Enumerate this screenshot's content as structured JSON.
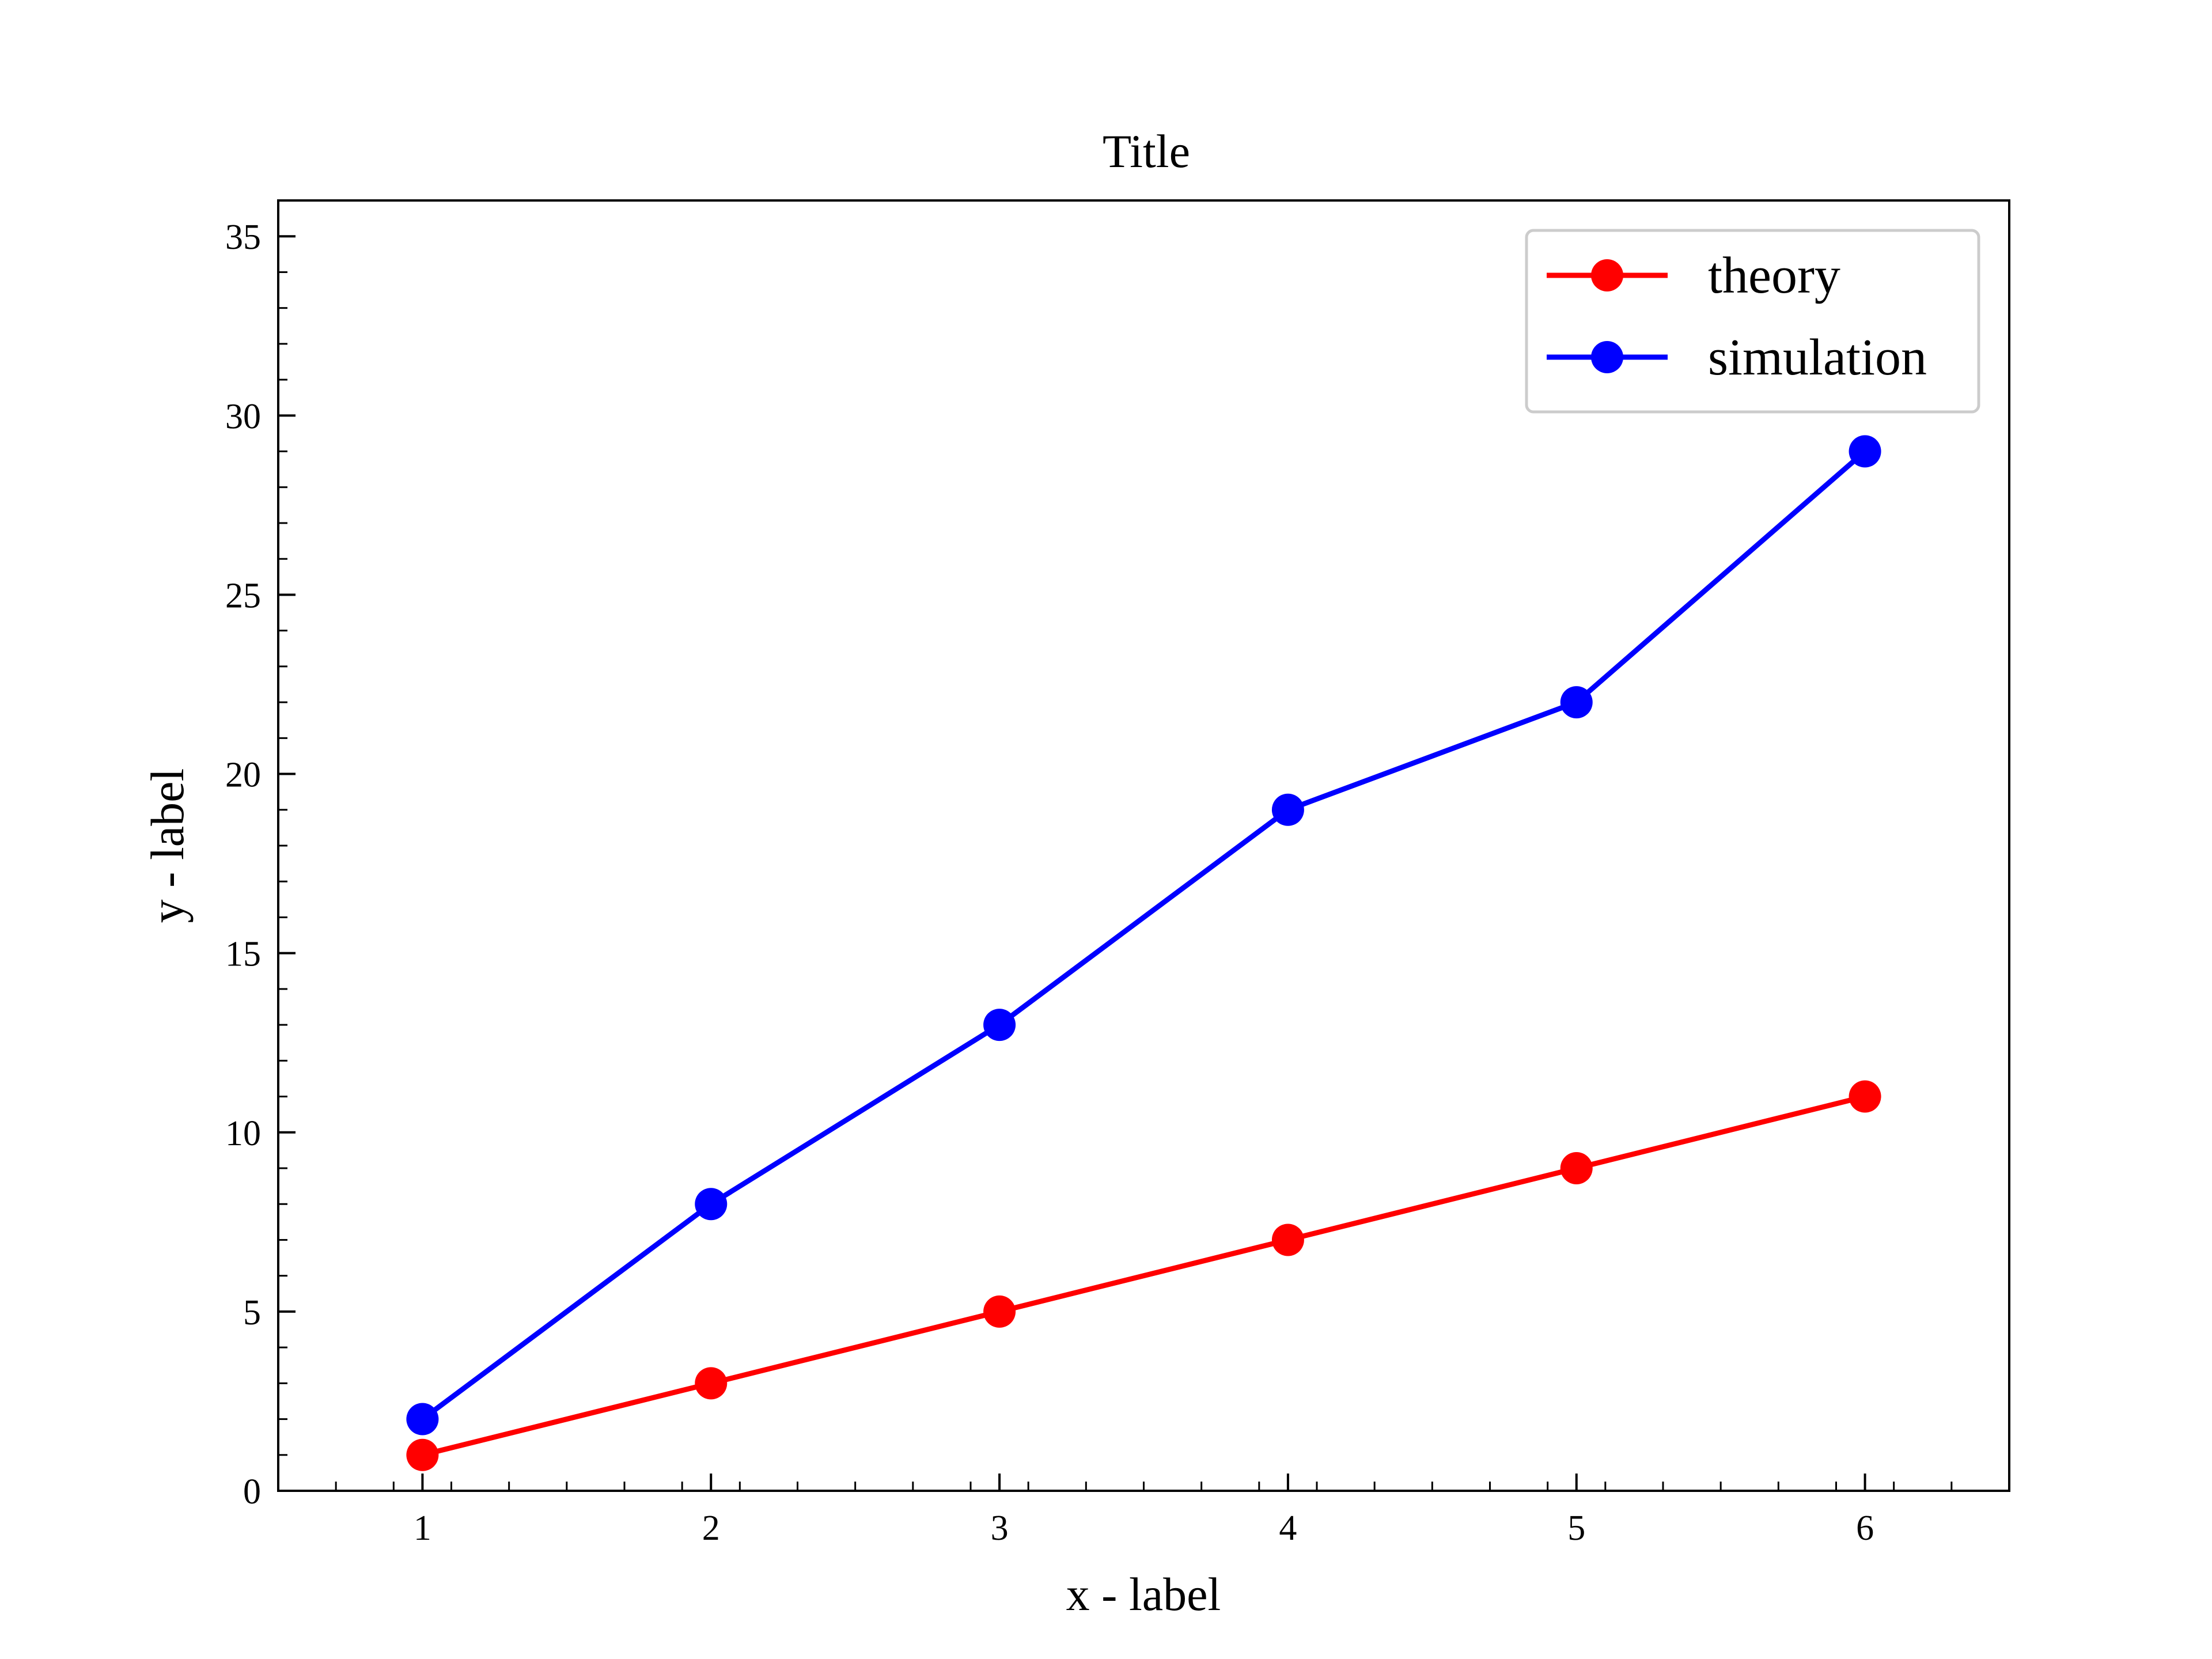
{
  "chart_data": {
    "type": "line",
    "title": "Title",
    "xlabel": "x - label",
    "ylabel": "y - label",
    "x": [
      1,
      2,
      3,
      4,
      5,
      6
    ],
    "xlim": [
      0.5,
      6.5
    ],
    "ylim": [
      0,
      36
    ],
    "xticks": [
      1,
      2,
      3,
      4,
      5,
      6
    ],
    "yticks": [
      0,
      5,
      10,
      15,
      20,
      25,
      30,
      35
    ],
    "grid": false,
    "legend_position": "top-right",
    "series": [
      {
        "name": "theory",
        "color": "#ff0000",
        "marker": "circle",
        "values": [
          1,
          3,
          5,
          7,
          9,
          11
        ]
      },
      {
        "name": "simulation",
        "color": "#0000ff",
        "marker": "circle",
        "values": [
          2,
          8,
          13,
          19,
          22,
          29
        ]
      }
    ]
  }
}
